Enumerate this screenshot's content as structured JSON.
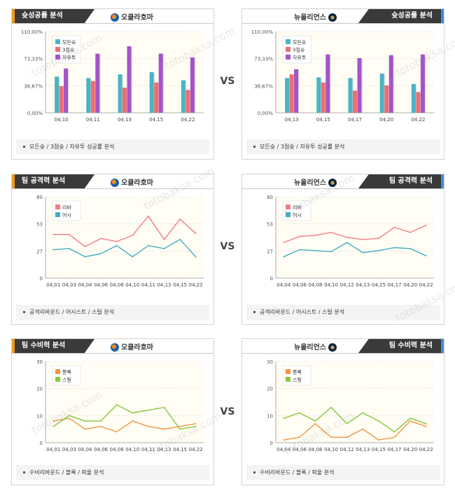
{
  "vs_label": "VS",
  "watermark_text": "totobaksa.com",
  "watermark_kr": "토토박사",
  "colors": {
    "win": "#4ab3c6",
    "p3": "#ee6e6e",
    "ft": "#a453c9",
    "reb": "#f07c86",
    "ast": "#43aec0",
    "blk": "#f59340",
    "stl": "#86c83a",
    "header": "#3a3a3a",
    "accent_left": "#f29a1a",
    "accent_right": "#3c8de0"
  },
  "teams": {
    "left": "오클라호마",
    "right": "뉴올리언스"
  },
  "sections": {
    "shooting": {
      "title": "슛성공률 분석",
      "footer": "모든슛 / 3점슛 / 자유투 성공률 분석"
    },
    "offense": {
      "title": "팀 공격력 분석",
      "footer": "공격리바운드 / 어시스트 / 스틸 분석"
    },
    "defense": {
      "title": "팀 수비력 분석",
      "footer": "수비리바운드 / 블록 / 파울 분석"
    }
  },
  "chart_data": [
    {
      "id": "okc_shooting",
      "type": "bar",
      "categories": [
        "04,10",
        "04,11",
        "04,13",
        "04,15",
        "04,22"
      ],
      "yticks": [
        "0,00%",
        "36,67%",
        "73,33%",
        "110,00%"
      ],
      "ylim": [
        0,
        110
      ],
      "series": [
        {
          "name": "모든슛",
          "color_key": "win",
          "values": [
            49,
            47,
            52,
            55,
            44
          ]
        },
        {
          "name": "3점슛",
          "color_key": "p3",
          "values": [
            36,
            43,
            34,
            41,
            31
          ]
        },
        {
          "name": "자유투",
          "color_key": "ft",
          "values": [
            60,
            80,
            90,
            80,
            75
          ]
        }
      ]
    },
    {
      "id": "nop_shooting",
      "type": "bar",
      "categories": [
        "04,13",
        "04,15",
        "04,17",
        "04,20",
        "04,22"
      ],
      "yticks": [
        "0,00%",
        "36,67%",
        "73,33%",
        "110,00%"
      ],
      "ylim": [
        0,
        110
      ],
      "series": [
        {
          "name": "모든슛",
          "color_key": "win",
          "values": [
            47,
            48,
            47,
            53,
            39
          ]
        },
        {
          "name": "3점슛",
          "color_key": "p3",
          "values": [
            52,
            41,
            30,
            37,
            28
          ]
        },
        {
          "name": "자유투",
          "color_key": "ft",
          "values": [
            59,
            79,
            74,
            78,
            79
          ]
        }
      ]
    },
    {
      "id": "okc_offense",
      "type": "line",
      "categories": [
        "04,01",
        "04,03",
        "04,04",
        "04,06",
        "04,08",
        "04,10",
        "04,11",
        "04,13",
        "04,15",
        "04,22"
      ],
      "yticks": [
        "0",
        "27",
        "53",
        "80"
      ],
      "ylim": [
        0,
        80
      ],
      "series": [
        {
          "name": "리바",
          "color_key": "reb",
          "values": [
            43,
            43,
            31,
            39,
            36,
            42,
            61,
            38,
            58,
            44
          ]
        },
        {
          "name": "어시",
          "color_key": "ast",
          "values": [
            28,
            29,
            21,
            24,
            32,
            21,
            32,
            29,
            38,
            21
          ]
        }
      ]
    },
    {
      "id": "nop_offense",
      "type": "line",
      "categories": [
        "04,04",
        "04,06",
        "04,08",
        "04,10",
        "04,12",
        "04,13",
        "04,15",
        "04,17",
        "04,20",
        "04,22"
      ],
      "yticks": [
        "0",
        "27",
        "53",
        "80"
      ],
      "ylim": [
        0,
        80
      ],
      "series": [
        {
          "name": "리바",
          "color_key": "reb",
          "values": [
            35,
            41,
            42,
            45,
            40,
            38,
            39,
            50,
            45,
            52
          ]
        },
        {
          "name": "어시",
          "color_key": "ast",
          "values": [
            21,
            28,
            27,
            26,
            35,
            25,
            27,
            30,
            29,
            22
          ]
        }
      ]
    },
    {
      "id": "okc_defense",
      "type": "line",
      "categories": [
        "04,01",
        "04,03",
        "04,04",
        "04,06",
        "04,08",
        "04,10",
        "04,11",
        "04,13",
        "04,15",
        "04,22"
      ],
      "yticks": [
        "0",
        "10",
        "20",
        "30"
      ],
      "ylim": [
        0,
        30
      ],
      "series": [
        {
          "name": "블록",
          "color_key": "blk",
          "values": [
            8,
            9,
            5,
            6,
            4,
            8,
            6,
            5,
            6,
            7
          ]
        },
        {
          "name": "스틸",
          "color_key": "stl",
          "values": [
            6,
            10,
            8,
            8,
            14,
            11,
            12,
            13,
            5,
            6
          ]
        }
      ]
    },
    {
      "id": "nop_defense",
      "type": "line",
      "categories": [
        "04,04",
        "04,06",
        "04,08",
        "04,10",
        "04,12",
        "04,13",
        "04,15",
        "04,17",
        "04,20",
        "04,22"
      ],
      "yticks": [
        "0",
        "10",
        "20",
        "30"
      ],
      "ylim": [
        0,
        30
      ],
      "series": [
        {
          "name": "블록",
          "color_key": "blk",
          "values": [
            1,
            2,
            7,
            2,
            2,
            5,
            1,
            2,
            8,
            6
          ]
        },
        {
          "name": "스틸",
          "color_key": "stl",
          "values": [
            9,
            11,
            8,
            13,
            7,
            11,
            8,
            4,
            9,
            7
          ]
        }
      ]
    }
  ]
}
